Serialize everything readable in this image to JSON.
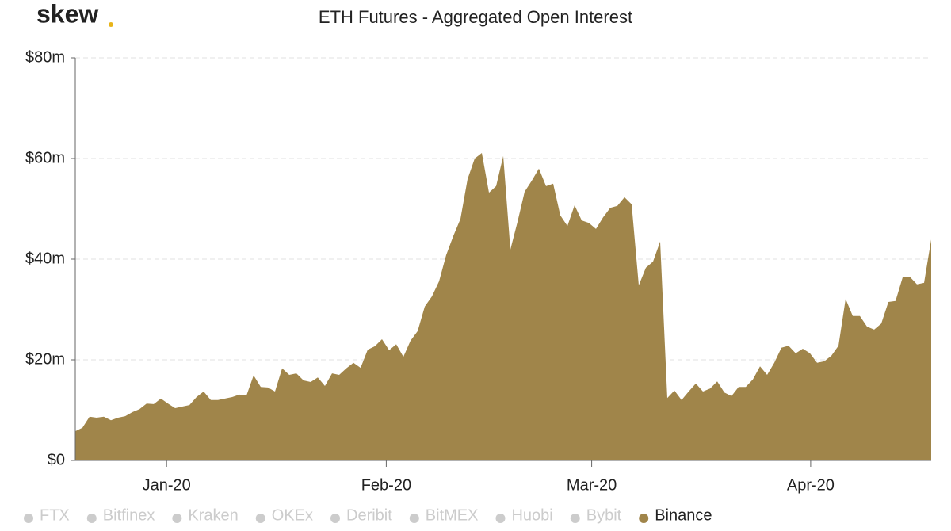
{
  "logo": "skew",
  "chart_data": {
    "type": "area",
    "title": "ETH Futures - Aggregated Open Interest",
    "ylim": [
      0,
      80
    ],
    "yticks": [
      {
        "value": 0,
        "label": "$0"
      },
      {
        "value": 20,
        "label": "$20m"
      },
      {
        "value": 40,
        "label": "$40m"
      },
      {
        "value": 60,
        "label": "$60m"
      },
      {
        "value": 80,
        "label": "$80m"
      }
    ],
    "xlim": [
      0,
      120
    ],
    "xticks": [
      {
        "value": 12.8,
        "label": "Jan-20"
      },
      {
        "value": 43.6,
        "label": "Feb-20"
      },
      {
        "value": 72.4,
        "label": "Mar-20"
      },
      {
        "value": 103.1,
        "label": "Apr-20"
      }
    ],
    "grid": true,
    "hidden_series": [
      {
        "name": "FTX"
      },
      {
        "name": "Bitfinex"
      },
      {
        "name": "Kraken"
      },
      {
        "name": "OKEx"
      },
      {
        "name": "Deribit"
      },
      {
        "name": "BitMEX"
      },
      {
        "name": "Huobi"
      },
      {
        "name": "Bybit"
      }
    ],
    "hidden_color": "#cccccc",
    "series": [
      {
        "name": "Binance",
        "color": "#a0854a",
        "values": [
          5.8,
          6.5,
          8.7,
          8.5,
          8.7,
          8.0,
          8.5,
          8.8,
          9.6,
          10.2,
          11.3,
          11.2,
          12.3,
          11.3,
          10.4,
          10.7,
          11.0,
          12.6,
          13.7,
          12.0,
          12.0,
          12.3,
          12.6,
          13.1,
          12.9,
          16.9,
          14.6,
          14.5,
          13.7,
          18.3,
          17.0,
          17.3,
          15.9,
          15.6,
          16.5,
          14.8,
          17.3,
          17.0,
          18.3,
          19.4,
          18.4,
          22.0,
          22.7,
          24.1,
          21.9,
          23.1,
          20.6,
          23.8,
          25.7,
          30.6,
          32.6,
          35.6,
          40.8,
          44.6,
          48.0,
          55.9,
          60.0,
          61.1,
          53.2,
          54.5,
          60.5,
          41.9,
          47.4,
          53.4,
          55.6,
          58.0,
          54.5,
          55.0,
          48.7,
          46.6,
          50.7,
          47.7,
          47.2,
          46.0,
          48.3,
          50.2,
          50.6,
          52.3,
          50.9,
          34.8,
          38.3,
          39.5,
          43.5,
          12.4,
          13.9,
          12.0,
          13.7,
          15.3,
          13.7,
          14.3,
          15.7,
          13.5,
          12.8,
          14.6,
          14.6,
          16.1,
          18.7,
          17.0,
          19.4,
          22.4,
          22.8,
          21.3,
          22.2,
          21.3,
          19.4,
          19.7,
          20.8,
          22.8,
          32.1,
          28.7,
          28.7,
          26.6,
          26.0,
          27.2,
          31.5,
          31.7,
          36.4,
          36.5,
          35.0,
          35.3,
          43.9
        ]
      }
    ]
  }
}
